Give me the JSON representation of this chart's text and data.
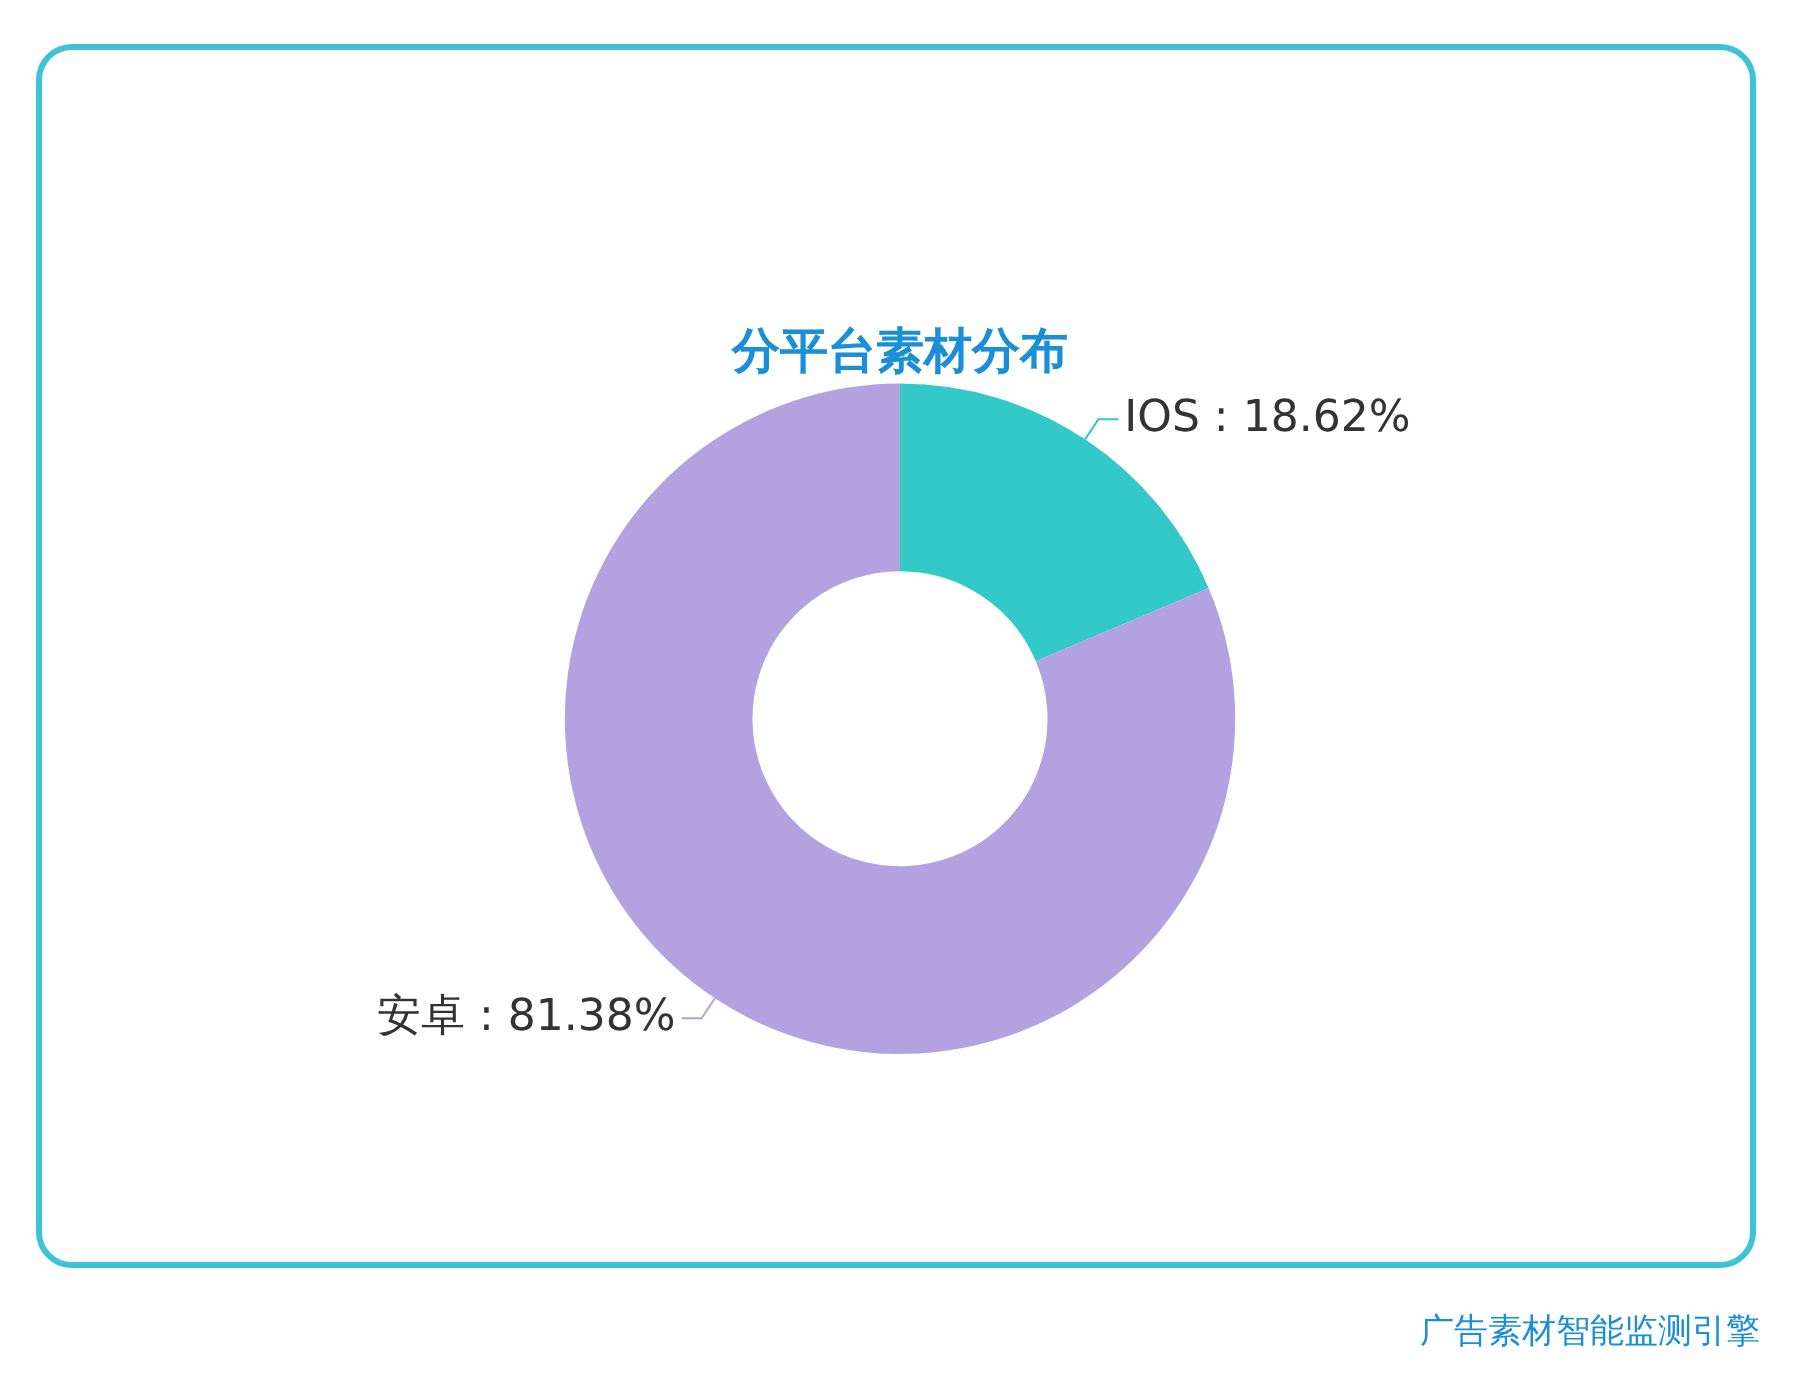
{
  "chart_data": {
    "type": "donut",
    "title": "分平台素材分布",
    "categories": [
      "IOS",
      "安卓"
    ],
    "values": [
      18.62,
      81.38
    ],
    "value_labels": [
      "18.62%",
      "81.38%"
    ],
    "colors": [
      "#33c9c9",
      "#b3a2e0"
    ],
    "legend": false,
    "annotations": [
      "广告素材智能监测引擎"
    ]
  }
}
